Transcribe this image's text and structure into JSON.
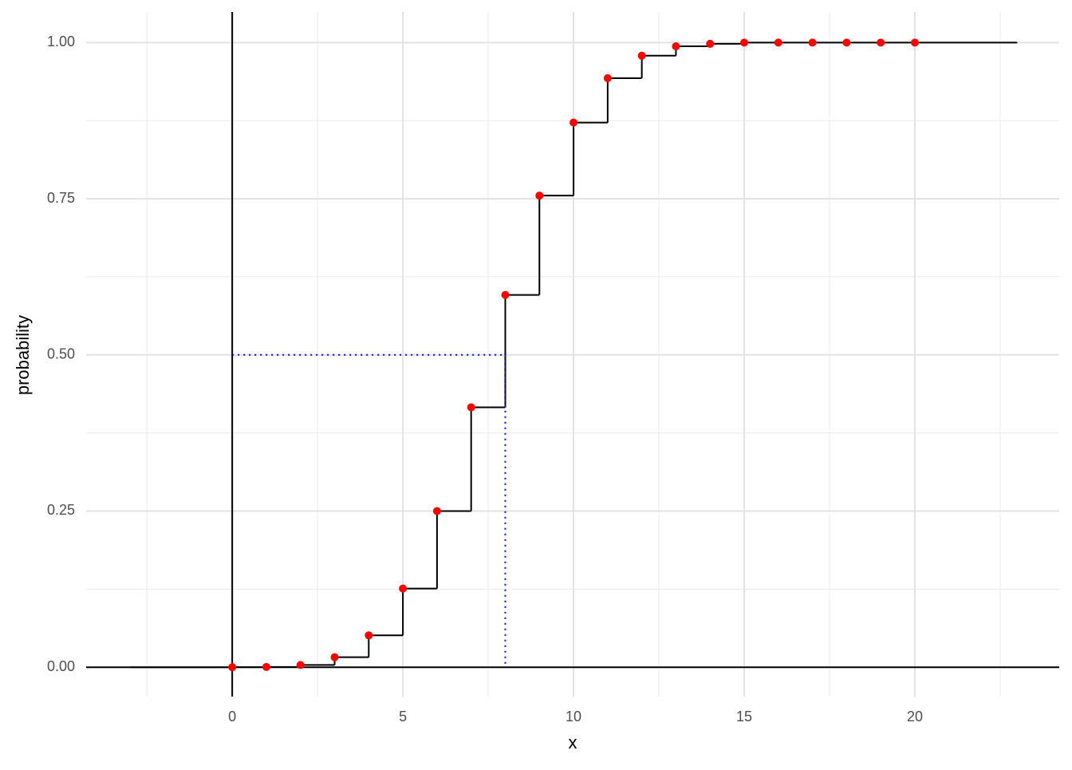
{
  "chart_data": {
    "type": "step",
    "x_label": "x",
    "y_label": "probability",
    "x": [
      0,
      1,
      2,
      3,
      4,
      5,
      6,
      7,
      8,
      9,
      10,
      11,
      12,
      13,
      14,
      15,
      16,
      17,
      18,
      19,
      20
    ],
    "values": [
      4e-05,
      0.0005,
      0.0036,
      0.016,
      0.051,
      0.126,
      0.25,
      0.416,
      0.596,
      0.755,
      0.872,
      0.943,
      0.979,
      0.994,
      0.998,
      1.0,
      1.0,
      1.0,
      1.0,
      1.0,
      1.0
    ],
    "step_range": [
      -3,
      23
    ],
    "line_color": "#000000",
    "point_color": "#ff0000",
    "hline": 0,
    "vline": 0,
    "quantile": {
      "x": 8,
      "p": 0.5,
      "color": "#0000ff"
    },
    "xlim": [
      -4.28,
      24.23
    ],
    "ylim": [
      -0.047,
      1.049
    ],
    "xticks": [
      0,
      5,
      10,
      15,
      20
    ],
    "yticks": [
      {
        "value": 0,
        "label": "0.00"
      },
      {
        "value": 0.25,
        "label": "0.25"
      },
      {
        "value": 0.5,
        "label": "0.50"
      },
      {
        "value": 0.75,
        "label": "0.75"
      },
      {
        "value": 1,
        "label": "1.00"
      }
    ],
    "xminor": [
      -2.5,
      2.5,
      7.5,
      12.5,
      17.5,
      22.5
    ],
    "yminor": [
      0.125,
      0.375,
      0.625,
      0.875
    ],
    "grid": true
  }
}
